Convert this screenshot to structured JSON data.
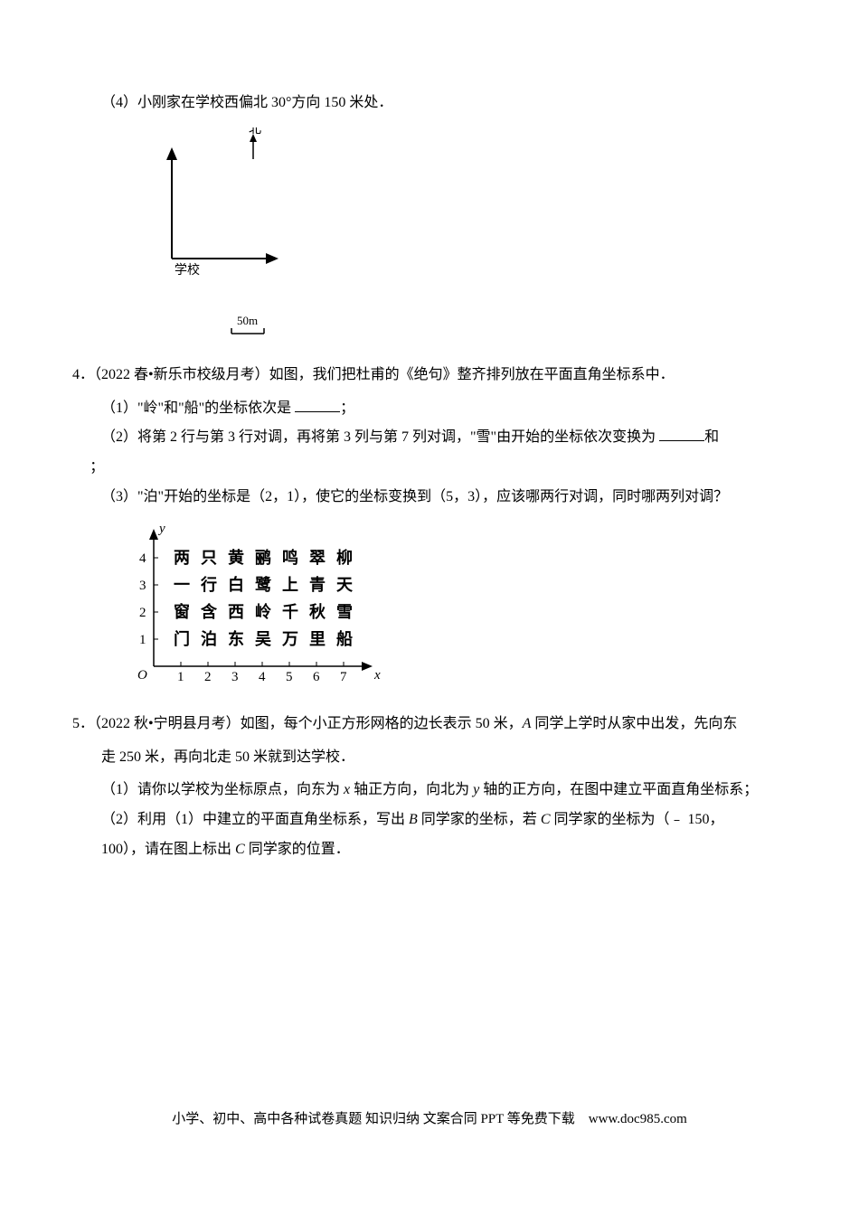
{
  "q3_sub4": "（4）小刚家在学校西偏北 30°方向 150 米处．",
  "fig1": {
    "north_label": "北",
    "school_label": "学校",
    "scale_label": "50m",
    "arrow_color": "#000000",
    "bg": "#ffffff"
  },
  "q4": {
    "number": "4．",
    "citation": "（2022 春•新乐市校级月考）",
    "stem": "如图，我们把杜甫的《绝句》整齐排列放在平面直角坐标系中．",
    "sub1": "（1）\"岭\"和\"船\"的坐标依次是 ",
    "sub1_tail": "；",
    "sub2_a": "（2）将第 2 行与第 3 行对调，再将第 3 列与第 7 列对调，\"雪\"由开始的坐标依次变换为 ",
    "sub2_b": "和",
    "sub2_tail": "；",
    "sub3": "（3）\"泊\"开始的坐标是（2，1），使它的坐标变换到（5，3），应该哪两行对调，同时哪两列对调？"
  },
  "poem": {
    "y_label": "y",
    "x_label": "x",
    "origin_label": "O",
    "x_ticks": [
      "1",
      "2",
      "3",
      "4",
      "5",
      "6",
      "7"
    ],
    "y_ticks": [
      "1",
      "2",
      "3",
      "4"
    ],
    "rows": [
      [
        "两",
        "只",
        "黄",
        "鹂",
        "鸣",
        "翠",
        "柳"
      ],
      [
        "一",
        "行",
        "白",
        "鹭",
        "上",
        "青",
        "天"
      ],
      [
        "窗",
        "含",
        "西",
        "岭",
        "千",
        "秋",
        "雪"
      ],
      [
        "门",
        "泊",
        "东",
        "吴",
        "万",
        "里",
        "船"
      ]
    ],
    "colors": {
      "axis": "#000000",
      "text": "#000000"
    },
    "cell_size": 30,
    "font_size": 18,
    "tick_font_size": 15
  },
  "q5": {
    "number": "5．",
    "citation": "（2022 秋•宁明县月考）",
    "stem_a": "如图，每个小正方形网格的边长表示 50 米，",
    "stem_b": " 同学上学时从家中出发，先向东",
    "stem_line2": "走 250 米，再向北走 50 米就到达学校．",
    "sub1_a": "（1）请你以学校为坐标原点，向东为 ",
    "sub1_b": " 轴正方向，向北为 ",
    "sub1_c": " 轴的正方向，在图中建立平面直角坐标系；",
    "sub2_a": "（2）利用（1）中建立的平面直角坐标系，写出 ",
    "sub2_b": " 同学家的坐标，若 ",
    "sub2_c": " 同学家的坐标为（﹣ 150，",
    "sub2_line2_a": "100），请在图上标出 ",
    "sub2_line2_b": " 同学家的位置．",
    "letter_A": "A",
    "letter_B": "B",
    "letter_C": "C",
    "letter_x": "x",
    "letter_y": "y"
  },
  "footer": "小学、初中、高中各种试卷真题 知识归纳 文案合同  PPT 等免费下载　www.doc985.com"
}
